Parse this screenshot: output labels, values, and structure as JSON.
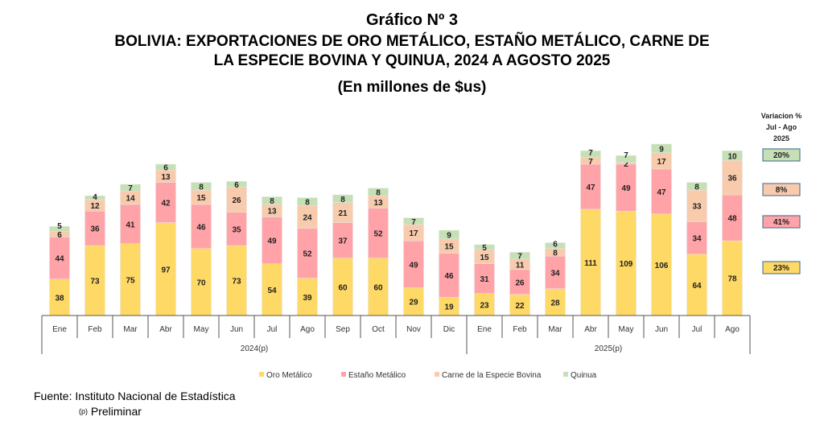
{
  "header": {
    "title": "Gráfico Nº 3",
    "subtitle_line1": "BOLIVIA: EXPORTACIONES DE ORO METÁLICO, ESTAÑO METÁLICO, CARNE DE",
    "subtitle_line2": "LA ESPECIE BOVINA Y QUINUA, 2024 A AGOSTO 2025",
    "units": "(En millones de $us)"
  },
  "chart_data": {
    "type": "bar",
    "stacked": true,
    "title": "BOLIVIA: EXPORTACIONES DE ORO METÁLICO, ESTAÑO METÁLICO, CARNE DE LA ESPECIE BOVINA Y QUINUA, 2024 A AGOSTO 2025",
    "categories": [
      "Ene",
      "Feb",
      "Mar",
      "Abr",
      "May",
      "Jun",
      "Jul",
      "Ago",
      "Sep",
      "Oct",
      "Nov",
      "Dic",
      "Ene",
      "Feb",
      "Mar",
      "Abr",
      "May",
      "Jun",
      "Jul",
      "Ago"
    ],
    "groups": [
      {
        "label": "2024(p)",
        "count": 12
      },
      {
        "label": "2025(p)",
        "count": 8
      }
    ],
    "series": [
      {
        "name": "Oro Metálico",
        "color": "#FFD966",
        "values": [
          38,
          73,
          75,
          97,
          70,
          73,
          54,
          39,
          60,
          60,
          29,
          19,
          23,
          22,
          28,
          111,
          109,
          106,
          64,
          78
        ]
      },
      {
        "name": "Estaño Metálico",
        "color": "#FFA3A8",
        "values": [
          44,
          36,
          41,
          42,
          46,
          35,
          49,
          52,
          37,
          52,
          49,
          46,
          31,
          26,
          34,
          47,
          49,
          47,
          34,
          48
        ]
      },
      {
        "name": "Carne de la Especie Bovina",
        "color": "#F8CBAD",
        "values": [
          6,
          12,
          14,
          13,
          15,
          26,
          13,
          24,
          21,
          13,
          17,
          15,
          15,
          11,
          8,
          7,
          2,
          17,
          33,
          36
        ]
      },
      {
        "name": "Quinua",
        "color": "#C5E0B4",
        "values": [
          5,
          4,
          7,
          6,
          8,
          6,
          8,
          8,
          8,
          8,
          7,
          9,
          5,
          7,
          6,
          7,
          7,
          9,
          8,
          10
        ]
      }
    ],
    "legend_position": "bottom",
    "grid": false,
    "variation": {
      "title_lines": [
        "Variacion %",
        "Jul - Ago",
        "2025"
      ],
      "values": [
        {
          "series": "Quinua",
          "label": "20%"
        },
        {
          "series": "Carne de la Especie Bovina",
          "label": "8%"
        },
        {
          "series": "Estaño Metálico",
          "label": "41%"
        },
        {
          "series": "Oro Metálico",
          "label": "23%"
        }
      ]
    }
  },
  "footer": {
    "source": "Fuente: Instituto Nacional de Estadística",
    "note_mark": "(p)",
    "note": "Preliminar"
  }
}
